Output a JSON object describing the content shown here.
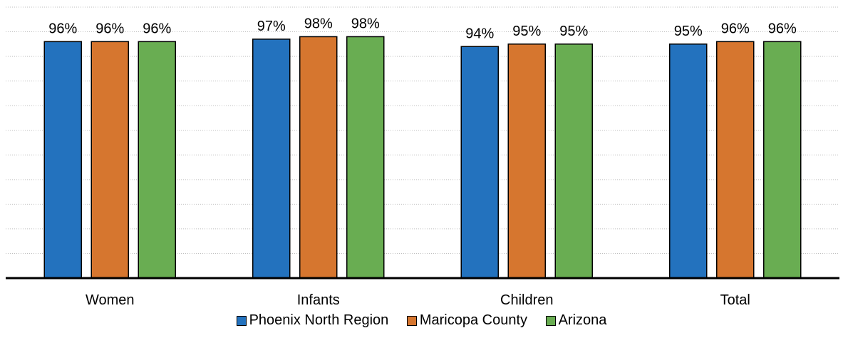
{
  "chart_data": {
    "type": "bar",
    "categories": [
      "Women",
      "Infants",
      "Children",
      "Total"
    ],
    "series": [
      {
        "name": "Phoenix North Region",
        "color": "#2372be",
        "values": [
          96,
          97,
          94,
          95
        ],
        "labels": [
          "96%",
          "97%",
          "94%",
          "95%"
        ]
      },
      {
        "name": "Maricopa County",
        "color": "#d6762f",
        "values": [
          96,
          98,
          95,
          96
        ],
        "labels": [
          "96%",
          "98%",
          "95%",
          "96%"
        ]
      },
      {
        "name": "Arizona",
        "color": "#69ad52",
        "values": [
          96,
          98,
          95,
          96
        ],
        "labels": [
          "96%",
          "98%",
          "95%",
          "96%"
        ]
      }
    ],
    "ylim": [
      0,
      110
    ],
    "grid": true,
    "legend_position": "bottom"
  }
}
